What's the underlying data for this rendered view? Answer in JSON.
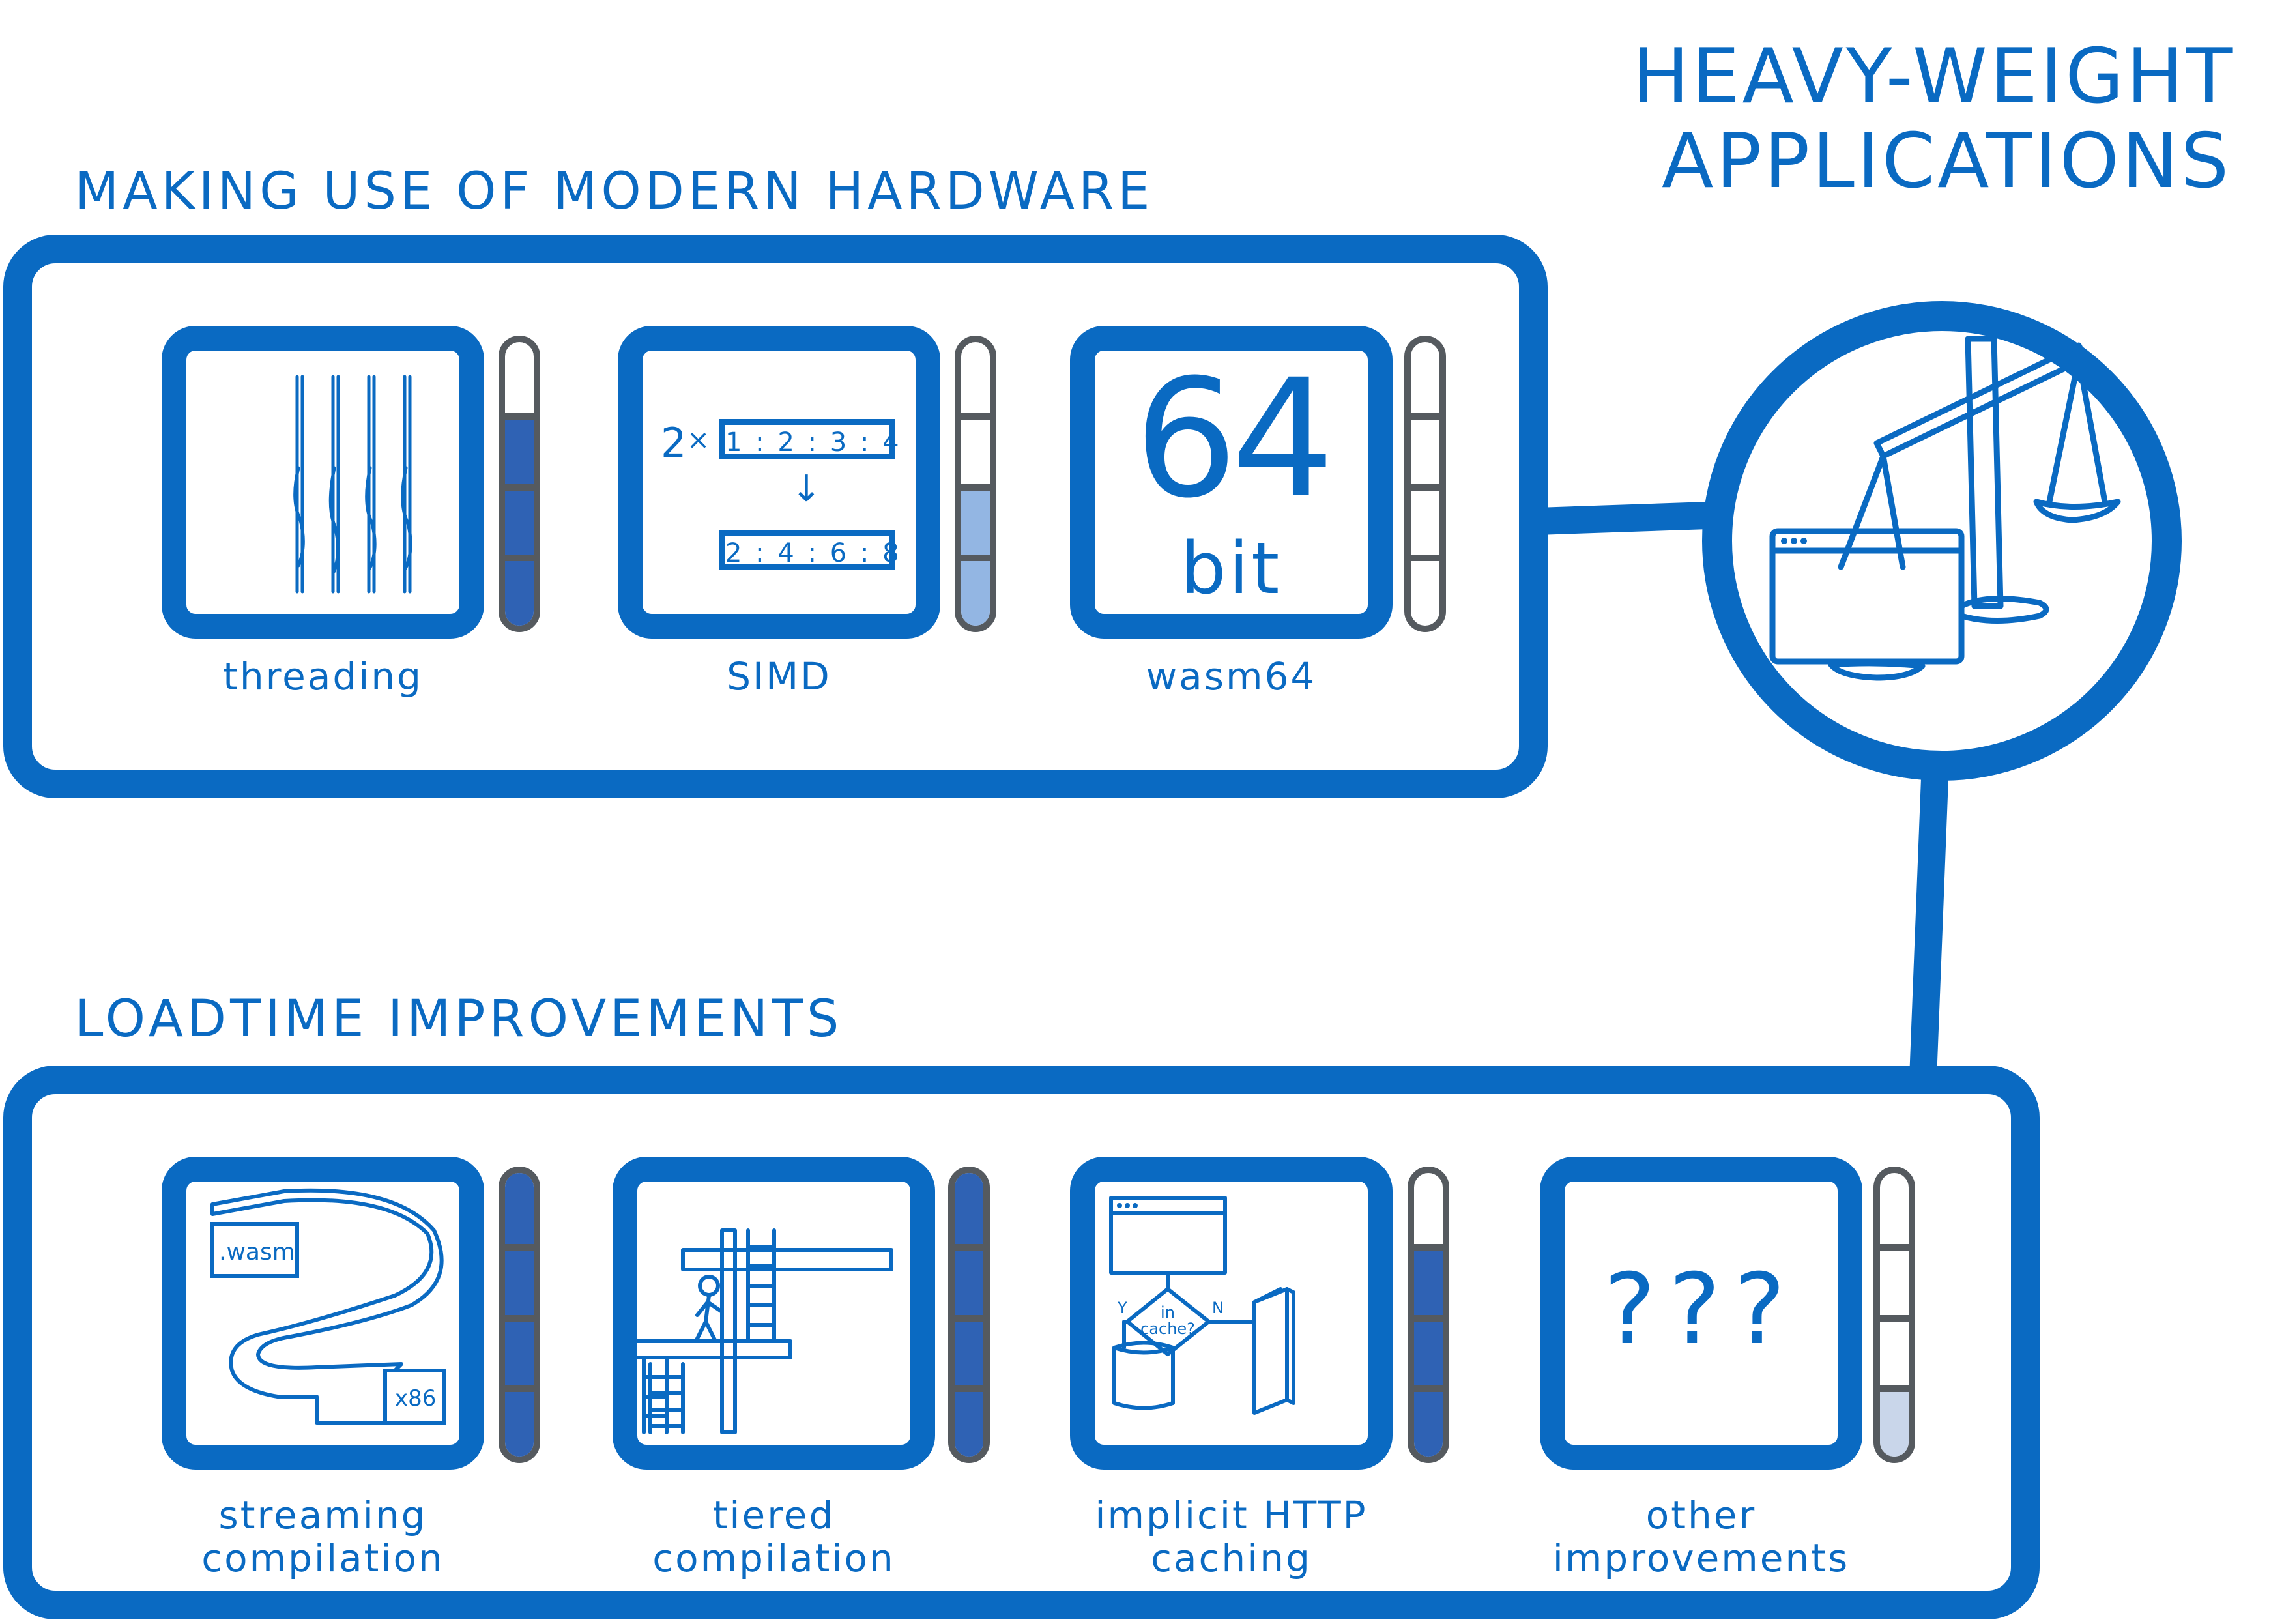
{
  "title": {
    "line1": "HEAVY-WEIGHT",
    "line2": "APPLICATIONS"
  },
  "sections": {
    "hardware": {
      "heading": "MAKING USE OF MODERN HARDWARE",
      "items": [
        {
          "caption": "threading",
          "progress_segments": 3,
          "segment_color": "#2f62b4"
        },
        {
          "caption": "SIMD",
          "progress_segments": 2,
          "segment_color": "#93b6e3",
          "simd": {
            "multiplier": "2",
            "times": "×",
            "input": "1 : 2 : 3 : 4",
            "arrow": "↓",
            "output": "2 : 4 : 6 : 8"
          }
        },
        {
          "caption": "wasm64",
          "progress_segments": 0,
          "segment_color": "#2f62b4",
          "big_number": "64",
          "unit": "bit"
        }
      ]
    },
    "loadtime": {
      "heading": "LOADTIME IMPROVEMENTS",
      "items": [
        {
          "caption_line1": "streaming",
          "caption_line2": "compilation",
          "progress_segments": 4,
          "segment_color": "#2f62b4",
          "labels": {
            "source": ".wasm",
            "target": "x86"
          }
        },
        {
          "caption_line1": "tiered",
          "caption_line2": "compilation",
          "progress_segments": 4,
          "segment_color": "#2f62b4"
        },
        {
          "caption_line1": "implicit HTTP",
          "caption_line2": "caching",
          "progress_segments": 3,
          "segment_color": "#2f62b4",
          "flow": {
            "question_line1": "in",
            "question_line2": "cache?",
            "yes": "Y",
            "no": "N"
          }
        },
        {
          "caption_line1": "other",
          "caption_line2": "improvements",
          "progress_segments": 1,
          "segment_color": "#c9d6ea",
          "placeholder": "???"
        }
      ]
    }
  },
  "colors": {
    "primary": "#0a6ac2",
    "meter_outline": "#555a5f"
  }
}
